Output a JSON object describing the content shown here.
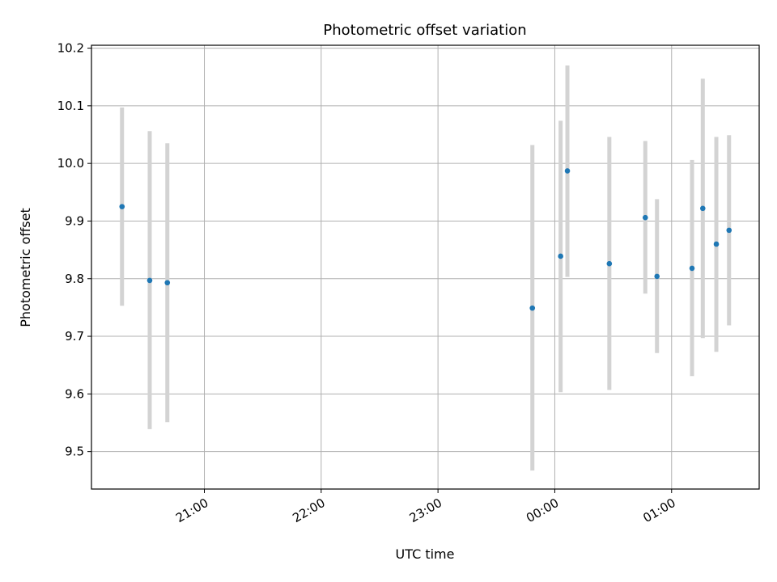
{
  "chart_data": {
    "type": "scatter",
    "title": "Photometric offset variation",
    "xlabel": "UTC time",
    "ylabel": "Photometric offset",
    "x_unit": "UTC time of day (hours, continuing past midnight)",
    "xlim": [
      20.0333,
      25.75
    ],
    "ylim": [
      9.435,
      10.205
    ],
    "grid": true,
    "x_ticks": [
      {
        "value": 21,
        "label": "21:00"
      },
      {
        "value": 22,
        "label": "22:00"
      },
      {
        "value": 23,
        "label": "23:00"
      },
      {
        "value": 24,
        "label": "00:00"
      },
      {
        "value": 25,
        "label": "01:00"
      }
    ],
    "y_ticks": [
      {
        "value": 9.5,
        "label": "9.5"
      },
      {
        "value": 9.6,
        "label": "9.6"
      },
      {
        "value": 9.7,
        "label": "9.7"
      },
      {
        "value": 9.8,
        "label": "9.8"
      },
      {
        "value": 9.9,
        "label": "9.9"
      },
      {
        "value": 10.0,
        "label": "10.0"
      },
      {
        "value": 10.1,
        "label": "10.1"
      },
      {
        "value": 10.2,
        "label": "10.2"
      }
    ],
    "point_color": "#1f77b4",
    "errorbar_color": "#d3d3d3",
    "points": [
      {
        "x": 20.295,
        "y": 9.925,
        "err_low": 9.753,
        "err_high": 10.097
      },
      {
        "x": 20.532,
        "y": 9.797,
        "err_low": 9.539,
        "err_high": 10.056
      },
      {
        "x": 20.683,
        "y": 9.793,
        "err_low": 9.551,
        "err_high": 10.035
      },
      {
        "x": 23.808,
        "y": 9.749,
        "err_low": 9.467,
        "err_high": 10.032
      },
      {
        "x": 24.05,
        "y": 9.839,
        "err_low": 9.603,
        "err_high": 10.074
      },
      {
        "x": 24.108,
        "y": 9.987,
        "err_low": 9.803,
        "err_high": 10.17
      },
      {
        "x": 24.467,
        "y": 9.826,
        "err_low": 9.607,
        "err_high": 10.046
      },
      {
        "x": 24.775,
        "y": 9.906,
        "err_low": 9.774,
        "err_high": 10.039
      },
      {
        "x": 24.875,
        "y": 9.804,
        "err_low": 9.671,
        "err_high": 9.938
      },
      {
        "x": 25.175,
        "y": 9.818,
        "err_low": 9.631,
        "err_high": 10.006
      },
      {
        "x": 25.267,
        "y": 9.922,
        "err_low": 9.697,
        "err_high": 10.147
      },
      {
        "x": 25.383,
        "y": 9.86,
        "err_low": 9.673,
        "err_high": 10.046
      },
      {
        "x": 25.492,
        "y": 9.884,
        "err_low": 9.719,
        "err_high": 10.049
      }
    ]
  }
}
